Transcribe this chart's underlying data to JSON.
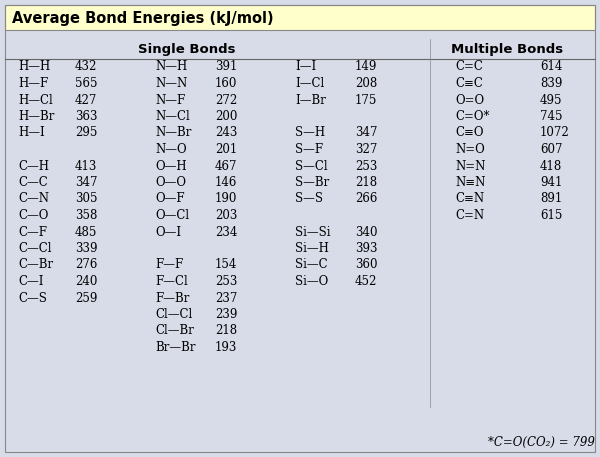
{
  "title": "Average Bond Energies (kJ/mol)",
  "title_bg": "#ffffcc",
  "table_bg": "#d8dce8",
  "border_color": "#a0a0a0",
  "header_single": "Single Bonds",
  "header_multiple": "Multiple Bonds",
  "single_bonds_col1": [
    [
      "H—H",
      "432"
    ],
    [
      "H—F",
      "565"
    ],
    [
      "H—Cl",
      "427"
    ],
    [
      "H—Br",
      "363"
    ],
    [
      "H—I",
      "295"
    ],
    [
      "",
      ""
    ],
    [
      "C—H",
      "413"
    ],
    [
      "C—C",
      "347"
    ],
    [
      "C—N",
      "305"
    ],
    [
      "C—O",
      "358"
    ],
    [
      "C—F",
      "485"
    ],
    [
      "C—Cl",
      "339"
    ],
    [
      "C—Br",
      "276"
    ],
    [
      "C—I",
      "240"
    ],
    [
      "C—S",
      "259"
    ]
  ],
  "single_bonds_col2": [
    [
      "N—H",
      "391"
    ],
    [
      "N—N",
      "160"
    ],
    [
      "N—F",
      "272"
    ],
    [
      "N—Cl",
      "200"
    ],
    [
      "N—Br",
      "243"
    ],
    [
      "N—O",
      "201"
    ],
    [
      "O—H",
      "467"
    ],
    [
      "O—O",
      "146"
    ],
    [
      "O—F",
      "190"
    ],
    [
      "O—Cl",
      "203"
    ],
    [
      "O—I",
      "234"
    ],
    [
      "",
      ""
    ],
    [
      "F—F",
      "154"
    ],
    [
      "F—Cl",
      "253"
    ],
    [
      "F—Br",
      "237"
    ],
    [
      "Cl—Cl",
      "239"
    ],
    [
      "Cl—Br",
      "218"
    ],
    [
      "Br—Br",
      "193"
    ]
  ],
  "single_bonds_col3": [
    [
      "I—I",
      "149"
    ],
    [
      "I—Cl",
      "208"
    ],
    [
      "I—Br",
      "175"
    ],
    [
      "",
      ""
    ],
    [
      "S—H",
      "347"
    ],
    [
      "S—F",
      "327"
    ],
    [
      "S—Cl",
      "253"
    ],
    [
      "S—Br",
      "218"
    ],
    [
      "S—S",
      "266"
    ],
    [
      "",
      ""
    ],
    [
      "Si—Si",
      "340"
    ],
    [
      "Si—H",
      "393"
    ],
    [
      "Si—C",
      "360"
    ],
    [
      "Si—O",
      "452"
    ]
  ],
  "multiple_bonds": [
    [
      "C=C",
      "614"
    ],
    [
      "C≡C",
      "839"
    ],
    [
      "O=O",
      "495"
    ],
    [
      "C=O*",
      "745"
    ],
    [
      "C≡O",
      "1072"
    ],
    [
      "N=O",
      "607"
    ],
    [
      "N=N",
      "418"
    ],
    [
      "N≡N",
      "941"
    ],
    [
      "C≡N",
      "891"
    ],
    [
      "C=N",
      "615"
    ]
  ],
  "footnote": "*C=O(CO₂) = 799",
  "font_size": 8.5,
  "title_font_size": 10.5
}
